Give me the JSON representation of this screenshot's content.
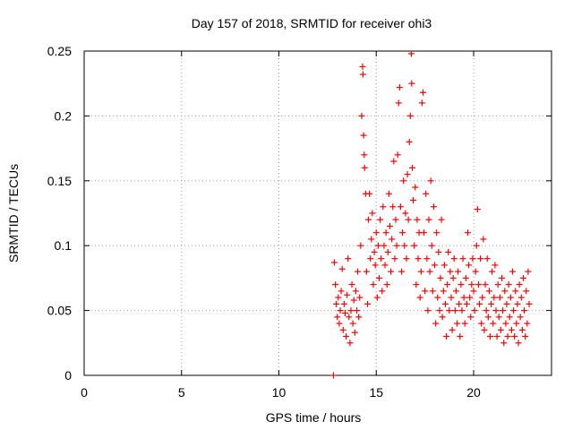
{
  "chart_data": {
    "type": "scatter",
    "title": "Day 157 of 2018, SRMTID for receiver ohi3",
    "xlabel": "GPS time / hours",
    "ylabel": "SRMTID / TECUs",
    "xlim": [
      0,
      24
    ],
    "ylim": [
      0,
      0.25
    ],
    "x_ticks": [
      0,
      5,
      10,
      15,
      20
    ],
    "x_tick_labels": [
      "0",
      "5",
      "10",
      "15",
      "20"
    ],
    "y_ticks": [
      0,
      0.05,
      0.1,
      0.15,
      0.2,
      0.25
    ],
    "y_tick_labels": [
      "0",
      "0.05",
      "0.1",
      "0.15",
      "0.2",
      "0.25"
    ],
    "grid": true,
    "marker": "plus",
    "color": "#ff0000",
    "series": [
      {
        "name": "SRMTID",
        "points": [
          [
            12.8,
            0.0
          ],
          [
            12.85,
            0.087
          ],
          [
            12.9,
            0.07
          ],
          [
            12.95,
            0.055
          ],
          [
            13.0,
            0.045
          ],
          [
            13.05,
            0.06
          ],
          [
            13.1,
            0.04
          ],
          [
            13.15,
            0.05
          ],
          [
            13.2,
            0.065
          ],
          [
            13.25,
            0.082
          ],
          [
            13.3,
            0.035
          ],
          [
            13.35,
            0.055
          ],
          [
            13.4,
            0.048
          ],
          [
            13.45,
            0.03
          ],
          [
            13.5,
            0.062
          ],
          [
            13.55,
            0.09
          ],
          [
            13.6,
            0.045
          ],
          [
            13.65,
            0.025
          ],
          [
            13.7,
            0.05
          ],
          [
            13.75,
            0.07
          ],
          [
            13.8,
            0.04
          ],
          [
            13.85,
            0.058
          ],
          [
            13.9,
            0.033
          ],
          [
            13.95,
            0.065
          ],
          [
            14.0,
            0.05
          ],
          [
            14.05,
            0.08
          ],
          [
            14.1,
            0.045
          ],
          [
            14.15,
            0.06
          ],
          [
            14.2,
            0.1
          ],
          [
            14.25,
            0.2
          ],
          [
            14.3,
            0.238
          ],
          [
            14.32,
            0.232
          ],
          [
            14.35,
            0.185
          ],
          [
            14.38,
            0.17
          ],
          [
            14.4,
            0.16
          ],
          [
            14.45,
            0.14
          ],
          [
            14.5,
            0.08
          ],
          [
            14.55,
            0.055
          ],
          [
            14.6,
            0.12
          ],
          [
            14.65,
            0.14
          ],
          [
            14.7,
            0.09
          ],
          [
            14.75,
            0.105
          ],
          [
            14.8,
            0.125
          ],
          [
            14.85,
            0.07
          ],
          [
            14.9,
            0.095
          ],
          [
            14.95,
            0.085
          ],
          [
            15.0,
            0.11
          ],
          [
            15.05,
            0.06
          ],
          [
            15.1,
            0.1
          ],
          [
            15.15,
            0.075
          ],
          [
            15.2,
            0.12
          ],
          [
            15.25,
            0.09
          ],
          [
            15.3,
            0.065
          ],
          [
            15.35,
            0.13
          ],
          [
            15.4,
            0.1
          ],
          [
            15.45,
            0.085
          ],
          [
            15.5,
            0.11
          ],
          [
            15.55,
            0.07
          ],
          [
            15.6,
            0.095
          ],
          [
            15.65,
            0.14
          ],
          [
            15.7,
            0.115
          ],
          [
            15.75,
            0.08
          ],
          [
            15.8,
            0.105
          ],
          [
            15.85,
            0.13
          ],
          [
            15.9,
            0.165
          ],
          [
            15.95,
            0.09
          ],
          [
            16.0,
            0.12
          ],
          [
            16.05,
            0.1
          ],
          [
            16.1,
            0.17
          ],
          [
            16.15,
            0.21
          ],
          [
            16.2,
            0.222
          ],
          [
            16.25,
            0.13
          ],
          [
            16.3,
            0.08
          ],
          [
            16.35,
            0.11
          ],
          [
            16.4,
            0.15
          ],
          [
            16.45,
            0.1
          ],
          [
            16.5,
            0.125
          ],
          [
            16.55,
            0.09
          ],
          [
            16.6,
            0.155
          ],
          [
            16.65,
            0.12
          ],
          [
            16.7,
            0.18
          ],
          [
            16.75,
            0.2
          ],
          [
            16.8,
            0.248
          ],
          [
            16.82,
            0.225
          ],
          [
            16.85,
            0.16
          ],
          [
            16.9,
            0.135
          ],
          [
            16.95,
            0.1
          ],
          [
            17.0,
            0.145
          ],
          [
            17.05,
            0.07
          ],
          [
            17.1,
            0.12
          ],
          [
            17.15,
            0.09
          ],
          [
            17.2,
            0.11
          ],
          [
            17.25,
            0.06
          ],
          [
            17.3,
            0.08
          ],
          [
            17.35,
            0.21
          ],
          [
            17.4,
            0.218
          ],
          [
            17.45,
            0.11
          ],
          [
            17.5,
            0.065
          ],
          [
            17.55,
            0.14
          ],
          [
            17.6,
            0.09
          ],
          [
            17.65,
            0.05
          ],
          [
            17.7,
            0.12
          ],
          [
            17.75,
            0.08
          ],
          [
            17.8,
            0.15
          ],
          [
            17.85,
            0.1
          ],
          [
            17.9,
            0.065
          ],
          [
            17.95,
            0.13
          ],
          [
            18.0,
            0.085
          ],
          [
            18.05,
            0.04
          ],
          [
            18.1,
            0.11
          ],
          [
            18.15,
            0.06
          ],
          [
            18.2,
            0.095
          ],
          [
            18.25,
            0.05
          ],
          [
            18.3,
            0.075
          ],
          [
            18.35,
            0.12
          ],
          [
            18.4,
            0.045
          ],
          [
            18.45,
            0.065
          ],
          [
            18.5,
            0.085
          ],
          [
            18.55,
            0.055
          ],
          [
            18.6,
            0.03
          ],
          [
            18.65,
            0.07
          ],
          [
            18.7,
            0.095
          ],
          [
            18.75,
            0.05
          ],
          [
            18.8,
            0.08
          ],
          [
            18.85,
            0.06
          ],
          [
            18.9,
            0.035
          ],
          [
            18.95,
            0.075
          ],
          [
            19.0,
            0.09
          ],
          [
            19.05,
            0.05
          ],
          [
            19.1,
            0.065
          ],
          [
            19.15,
            0.04
          ],
          [
            19.2,
            0.08
          ],
          [
            19.25,
            0.055
          ],
          [
            19.3,
            0.03
          ],
          [
            19.35,
            0.07
          ],
          [
            19.4,
            0.05
          ],
          [
            19.45,
            0.09
          ],
          [
            19.5,
            0.06
          ],
          [
            19.55,
            0.04
          ],
          [
            19.6,
            0.075
          ],
          [
            19.65,
            0.055
          ],
          [
            19.7,
            0.11
          ],
          [
            19.75,
            0.085
          ],
          [
            19.8,
            0.06
          ],
          [
            19.85,
            0.045
          ],
          [
            19.9,
            0.07
          ],
          [
            19.95,
            0.09
          ],
          [
            20.0,
            0.065
          ],
          [
            20.05,
            0.05
          ],
          [
            20.1,
            0.08
          ],
          [
            20.15,
            0.1
          ],
          [
            20.2,
            0.128
          ],
          [
            20.25,
            0.07
          ],
          [
            20.3,
            0.055
          ],
          [
            20.35,
            0.09
          ],
          [
            20.4,
            0.04
          ],
          [
            20.45,
            0.06
          ],
          [
            20.5,
            0.105
          ],
          [
            20.55,
            0.035
          ],
          [
            20.6,
            0.07
          ],
          [
            20.65,
            0.05
          ],
          [
            20.7,
            0.09
          ],
          [
            20.75,
            0.045
          ],
          [
            20.8,
            0.065
          ],
          [
            20.85,
            0.03
          ],
          [
            20.9,
            0.055
          ],
          [
            20.95,
            0.08
          ],
          [
            21.0,
            0.04
          ],
          [
            21.05,
            0.06
          ],
          [
            21.1,
            0.085
          ],
          [
            21.15,
            0.05
          ],
          [
            21.2,
            0.03
          ],
          [
            21.25,
            0.07
          ],
          [
            21.3,
            0.045
          ],
          [
            21.35,
            0.06
          ],
          [
            21.4,
            0.035
          ],
          [
            21.45,
            0.075
          ],
          [
            21.5,
            0.05
          ],
          [
            21.55,
            0.025
          ],
          [
            21.6,
            0.065
          ],
          [
            21.65,
            0.04
          ],
          [
            21.7,
            0.055
          ],
          [
            21.75,
            0.03
          ],
          [
            21.8,
            0.07
          ],
          [
            21.85,
            0.045
          ],
          [
            21.9,
            0.06
          ],
          [
            21.95,
            0.035
          ],
          [
            22.0,
            0.08
          ],
          [
            22.05,
            0.05
          ],
          [
            22.1,
            0.03
          ],
          [
            22.15,
            0.065
          ],
          [
            22.2,
            0.04
          ],
          [
            22.25,
            0.055
          ],
          [
            22.3,
            0.025
          ],
          [
            22.35,
            0.07
          ],
          [
            22.4,
            0.045
          ],
          [
            22.45,
            0.06
          ],
          [
            22.5,
            0.035
          ],
          [
            22.55,
            0.075
          ],
          [
            22.6,
            0.05
          ],
          [
            22.65,
            0.03
          ],
          [
            22.7,
            0.065
          ],
          [
            22.75,
            0.04
          ],
          [
            22.8,
            0.08
          ],
          [
            22.85,
            0.055
          ]
        ]
      }
    ]
  }
}
